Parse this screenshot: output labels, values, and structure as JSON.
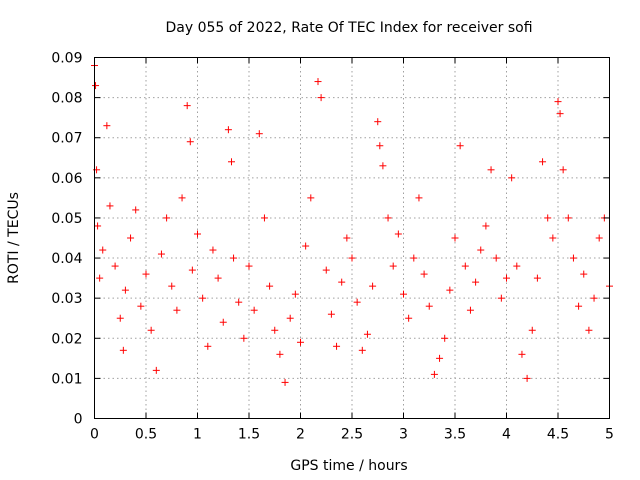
{
  "chart_data": {
    "type": "scatter",
    "title": "Day 055 of 2022, Rate Of TEC Index for receiver sofi",
    "xlabel": "GPS time / hours",
    "ylabel": "ROTI / TECUs",
    "xlim": [
      0,
      5
    ],
    "ylim": [
      0,
      0.09
    ],
    "xticks": [
      "0",
      "0.5",
      "1",
      "1.5",
      "2",
      "2.5",
      "3",
      "3.5",
      "4",
      "4.5",
      "5"
    ],
    "yticks": [
      "0",
      "0.01",
      "0.02",
      "0.03",
      "0.04",
      "0.05",
      "0.06",
      "0.07",
      "0.08",
      "0.09"
    ],
    "grid": true,
    "marker": "+",
    "color": "#ff0000",
    "series": [
      {
        "name": "sofi ROTI",
        "x": [
          0.0,
          0.01,
          0.02,
          0.03,
          0.05,
          0.08,
          0.12,
          0.15,
          0.2,
          0.25,
          0.28,
          0.3,
          0.35,
          0.4,
          0.45,
          0.5,
          0.55,
          0.6,
          0.65,
          0.7,
          0.75,
          0.8,
          0.85,
          0.9,
          0.93,
          0.95,
          1.0,
          1.05,
          1.1,
          1.15,
          1.2,
          1.25,
          1.3,
          1.33,
          1.35,
          1.4,
          1.45,
          1.5,
          1.55,
          1.6,
          1.65,
          1.7,
          1.75,
          1.8,
          1.85,
          1.9,
          1.95,
          2.0,
          2.05,
          2.1,
          2.17,
          2.2,
          2.25,
          2.3,
          2.35,
          2.4,
          2.45,
          2.5,
          2.55,
          2.6,
          2.65,
          2.7,
          2.75,
          2.77,
          2.8,
          2.85,
          2.9,
          2.95,
          3.0,
          3.05,
          3.1,
          3.15,
          3.2,
          3.25,
          3.3,
          3.35,
          3.4,
          3.45,
          3.5,
          3.55,
          3.6,
          3.65,
          3.7,
          3.75,
          3.8,
          3.85,
          3.9,
          3.95,
          4.0,
          4.05,
          4.1,
          4.15,
          4.2,
          4.25,
          4.3,
          4.35,
          4.4,
          4.45,
          4.5,
          4.52,
          4.55,
          4.6,
          4.65,
          4.7,
          4.75,
          4.8,
          4.85,
          4.9,
          4.95,
          5.0
        ],
        "y": [
          0.088,
          0.083,
          0.062,
          0.048,
          0.035,
          0.042,
          0.073,
          0.053,
          0.038,
          0.025,
          0.017,
          0.032,
          0.045,
          0.052,
          0.028,
          0.036,
          0.022,
          0.012,
          0.041,
          0.05,
          0.033,
          0.027,
          0.055,
          0.078,
          0.069,
          0.037,
          0.046,
          0.03,
          0.018,
          0.042,
          0.035,
          0.024,
          0.072,
          0.064,
          0.04,
          0.029,
          0.02,
          0.038,
          0.027,
          0.071,
          0.05,
          0.033,
          0.022,
          0.016,
          0.009,
          0.025,
          0.031,
          0.019,
          0.043,
          0.055,
          0.084,
          0.08,
          0.037,
          0.026,
          0.018,
          0.034,
          0.045,
          0.04,
          0.029,
          0.017,
          0.021,
          0.033,
          0.074,
          0.068,
          0.063,
          0.05,
          0.038,
          0.046,
          0.031,
          0.025,
          0.04,
          0.055,
          0.036,
          0.028,
          0.011,
          0.015,
          0.02,
          0.032,
          0.045,
          0.068,
          0.038,
          0.027,
          0.034,
          0.042,
          0.048,
          0.062,
          0.04,
          0.03,
          0.035,
          0.06,
          0.038,
          0.016,
          0.01,
          0.022,
          0.035,
          0.064,
          0.05,
          0.045,
          0.079,
          0.076,
          0.062,
          0.05,
          0.04,
          0.028,
          0.036,
          0.022,
          0.03,
          0.045,
          0.05,
          0.033
        ]
      }
    ]
  }
}
